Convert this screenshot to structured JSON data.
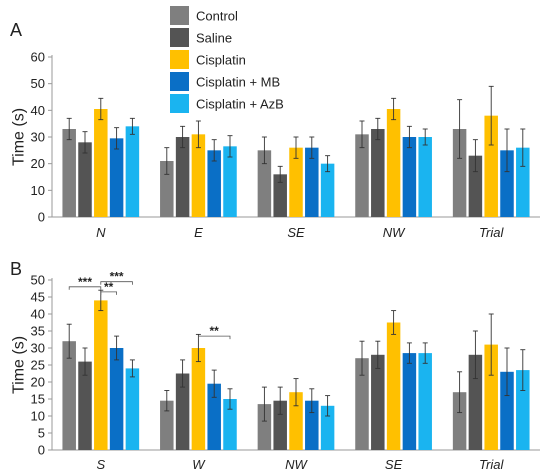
{
  "legend": [
    {
      "name": "Control",
      "color": "#7f7f7f"
    },
    {
      "name": "Saline",
      "color": "#545454"
    },
    {
      "name": "Cisplatin",
      "color": "#ffc000"
    },
    {
      "name": "Cisplatin + MB",
      "color": "#0a6fc6"
    },
    {
      "name": "Cisplatin + AzB",
      "color": "#1ab4f0"
    }
  ],
  "chart_data": [
    {
      "type": "bar",
      "panel_label": "A",
      "ylabel": "Time (s)",
      "ylim": [
        0,
        60
      ],
      "yticks": [
        0,
        10,
        20,
        30,
        40,
        50,
        60
      ],
      "grid": false,
      "categories": [
        "N",
        "E",
        "SE",
        "NW",
        "Trial"
      ],
      "series": [
        {
          "name": "Control",
          "color": "#7f7f7f",
          "values": [
            33,
            21,
            25,
            31,
            33
          ],
          "errors": [
            4,
            5,
            5,
            5,
            11
          ]
        },
        {
          "name": "Saline",
          "color": "#545454",
          "values": [
            28,
            30,
            16,
            33,
            23
          ],
          "errors": [
            4,
            4,
            3,
            4,
            6
          ]
        },
        {
          "name": "Cisplatin",
          "color": "#ffc000",
          "values": [
            40.5,
            31,
            26,
            40.5,
            38
          ],
          "errors": [
            4,
            5,
            4,
            4,
            11
          ]
        },
        {
          "name": "Cisplatin + MB",
          "color": "#0a6fc6",
          "values": [
            29.5,
            25,
            26,
            30,
            25
          ],
          "errors": [
            4,
            4,
            4,
            4,
            8
          ]
        },
        {
          "name": "Cisplatin + AzB",
          "color": "#1ab4f0",
          "values": [
            34,
            26.5,
            20,
            30,
            26
          ],
          "errors": [
            3,
            4,
            3,
            3,
            7
          ]
        }
      ],
      "significance": []
    },
    {
      "type": "bar",
      "panel_label": "B",
      "ylabel": "Time (s)",
      "ylim": [
        0,
        50
      ],
      "yticks": [
        0,
        5,
        10,
        15,
        20,
        25,
        30,
        35,
        40,
        45,
        50
      ],
      "grid": false,
      "categories": [
        "S",
        "W",
        "NW",
        "SE",
        "Trial"
      ],
      "series": [
        {
          "name": "Control",
          "color": "#7f7f7f",
          "values": [
            32,
            14.5,
            13.5,
            27,
            17
          ],
          "errors": [
            5,
            3,
            5,
            5,
            6
          ]
        },
        {
          "name": "Saline",
          "color": "#545454",
          "values": [
            26,
            22.5,
            14.5,
            28,
            28
          ],
          "errors": [
            4,
            4,
            4,
            4,
            7
          ]
        },
        {
          "name": "Cisplatin",
          "color": "#ffc000",
          "values": [
            44,
            30,
            17,
            37.5,
            31
          ],
          "errors": [
            3,
            4,
            4,
            3.5,
            9
          ]
        },
        {
          "name": "Cisplatin + MB",
          "color": "#0a6fc6",
          "values": [
            30,
            19.5,
            14.5,
            28.5,
            23
          ],
          "errors": [
            3.5,
            4,
            3.5,
            3,
            7
          ]
        },
        {
          "name": "Cisplatin + AzB",
          "color": "#1ab4f0",
          "values": [
            24,
            15,
            13,
            28.5,
            23.5
          ],
          "errors": [
            2.5,
            3,
            3,
            3,
            6
          ]
        }
      ],
      "significance": [
        {
          "category": "S",
          "from": "Control",
          "to": "Cisplatin",
          "label": "***",
          "y": 48
        },
        {
          "category": "S",
          "from": "Cisplatin",
          "to": "Cisplatin + MB",
          "label": "**",
          "y": 46.5
        },
        {
          "category": "S",
          "from": "Cisplatin",
          "to": "Cisplatin + AzB",
          "label": "***",
          "y": 49.5
        },
        {
          "category": "W",
          "from": "Cisplatin",
          "to": "Cisplatin + AzB",
          "label": "**",
          "y": 33.5
        }
      ]
    }
  ]
}
